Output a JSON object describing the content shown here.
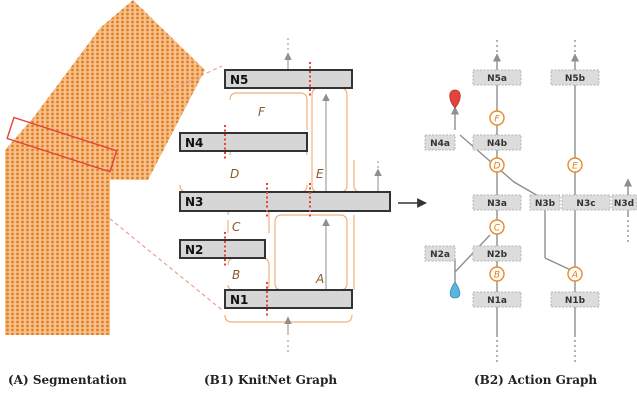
{
  "captions": {
    "a": "(A) Segmentation",
    "b1": "(B1) KnitNet Graph",
    "b2": "(B2) Action Graph"
  },
  "knitnet": {
    "nodes": [
      "N5",
      "N4",
      "N3",
      "N2",
      "N1"
    ],
    "faces": [
      "F",
      "D",
      "E",
      "C",
      "B",
      "A"
    ]
  },
  "action": {
    "nodes": [
      "N5a",
      "N5b",
      "N4a",
      "N4b",
      "N3a",
      "N3b",
      "N3c",
      "N3d",
      "N2a",
      "N2b",
      "N1a",
      "N1b"
    ],
    "faces": [
      "F",
      "E",
      "D",
      "C",
      "B",
      "A"
    ]
  },
  "colors": {
    "orange": "#e88a2a",
    "grey": "#d3d3d3",
    "red": "#e0443a",
    "blue": "#5ab4dd"
  }
}
